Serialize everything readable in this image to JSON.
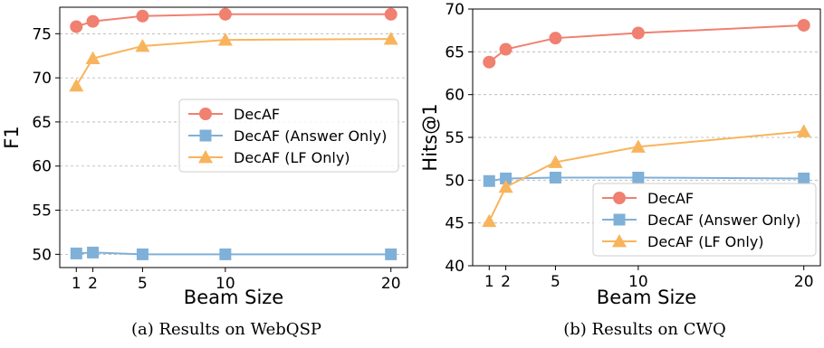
{
  "chart_data": [
    {
      "type": "line",
      "caption": "(a) Results on WebQSP",
      "title": "",
      "xlabel": "Beam Size",
      "ylabel": "F1",
      "x": [
        1,
        2,
        5,
        10,
        20
      ],
      "x_ticks": [
        1,
        2,
        5,
        10,
        20
      ],
      "ylim": [
        48.5,
        78
      ],
      "y_ticks": [
        50,
        55,
        60,
        65,
        70,
        75
      ],
      "grid": "horizontal dashed",
      "legend_position": "center-right",
      "series": [
        {
          "name": "DecAF",
          "marker": "circle",
          "color": "#f08070",
          "values": [
            75.8,
            76.4,
            77.0,
            77.2,
            77.2
          ]
        },
        {
          "name": "DecAF (Answer Only)",
          "marker": "square",
          "color": "#7fb0d8",
          "values": [
            50.1,
            50.2,
            50.0,
            50.0,
            50.0
          ]
        },
        {
          "name": "DecAF (LF Only)",
          "marker": "triangle",
          "color": "#f8b45c",
          "values": [
            69.1,
            72.2,
            73.6,
            74.3,
            74.4
          ]
        }
      ]
    },
    {
      "type": "line",
      "caption": "(b) Results on CWQ",
      "title": "",
      "xlabel": "Beam Size",
      "ylabel": "Hits@1",
      "x": [
        1,
        2,
        5,
        10,
        20
      ],
      "x_ticks": [
        1,
        2,
        5,
        10,
        20
      ],
      "ylim": [
        40,
        70
      ],
      "y_ticks": [
        40,
        45,
        50,
        55,
        60,
        65,
        70
      ],
      "grid": "horizontal dashed",
      "legend_position": "bottom-right",
      "series": [
        {
          "name": "DecAF",
          "marker": "circle",
          "color": "#f08070",
          "values": [
            63.8,
            65.3,
            66.6,
            67.2,
            68.1
          ]
        },
        {
          "name": "DecAF (Answer Only)",
          "marker": "square",
          "color": "#7fb0d8",
          "values": [
            49.9,
            50.2,
            50.3,
            50.3,
            50.2
          ]
        },
        {
          "name": "DecAF (LF Only)",
          "marker": "triangle",
          "color": "#f8b45c",
          "values": [
            45.2,
            49.2,
            52.1,
            53.9,
            55.7
          ]
        }
      ]
    }
  ]
}
